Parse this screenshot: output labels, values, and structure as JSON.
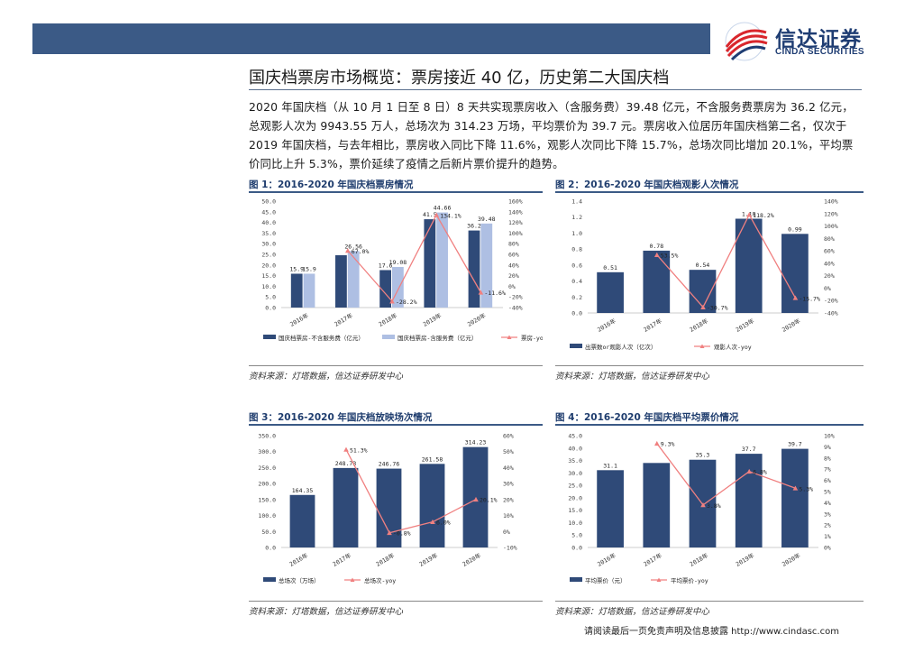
{
  "header": {
    "logo_cn": "信达证券",
    "logo_en": "CINDA SECURITIES"
  },
  "page_title": "国庆档票房市场概览：票房接近 40 亿，历史第二大国庆档",
  "paragraph": "2020 年国庆档（从 10 月 1 日至 8 日）8 天共实现票房收入（含服务费）39.48 亿元，不含服务费票房为 36.2 亿元，总观影人次为 9943.55 万人，总场次为 314.23 万场，平均票价为 39.7 元。票房收入位居历年国庆档第二名，仅次于 2019 年国庆档，与去年相比，票房收入同比下降 11.6%，观影人次同比下降 15.7%，总场次同比增加 20.1%，平均票价同比上升 5.3%，票价延续了疫情之后新片票价提升的趋势。",
  "source_text": "资料来源：灯塔数据，信达证券研发中心",
  "footer": "请阅读最后一页免责声明及信息披露 http://www.cindasc.com",
  "colors": {
    "bar_dark": "#2f4a78",
    "bar_light": "#aebfe3",
    "line_red": "#f08080"
  },
  "chart_data": [
    {
      "id": "fig1",
      "fig_title": "图 1：2016-2020 年国庆档票房情况",
      "type": "bar",
      "categories": [
        "2016年",
        "2017年",
        "2018年",
        "2019年",
        "2020年"
      ],
      "series": [
        {
          "name": "国庆档票房-不含服务费（亿元）",
          "values": [
            15.9,
            24.6,
            17.6,
            41.5,
            36.2
          ],
          "labels": [
            "15.9",
            "",
            "17.6",
            "41.5",
            "36.2"
          ],
          "axis": "left",
          "color": "#2f4a78"
        },
        {
          "name": "国庆档票房-含服务费（亿元）",
          "values": [
            15.9,
            26.56,
            19.08,
            44.66,
            39.48
          ],
          "labels": [
            "15.9",
            "26.56",
            "19.08",
            "44.66",
            "39.48"
          ],
          "axis": "left",
          "color": "#aebfe3"
        },
        {
          "name": "票房-yoy",
          "type": "line",
          "values": [
            null,
            67.0,
            -28.2,
            134.1,
            -11.6
          ],
          "labels": [
            "",
            "67.0%",
            "-28.2%",
            "134.1%",
            "-11.6%"
          ],
          "axis": "right",
          "color": "#f08080"
        }
      ],
      "y_left": {
        "min": 0,
        "max": 50,
        "step": 5,
        "decimals": 1
      },
      "y_right": {
        "min": -40,
        "max": 160,
        "step": 20,
        "suffix": "%"
      }
    },
    {
      "id": "fig2",
      "fig_title": "图 2：2016-2020 年国庆档观影人次情况",
      "type": "bar",
      "categories": [
        "2016年",
        "2017年",
        "2018年",
        "2019年",
        "2020年"
      ],
      "series": [
        {
          "name": "出票数or观影人次（亿次）",
          "values": [
            0.51,
            0.78,
            0.54,
            1.18,
            0.99
          ],
          "labels": [
            "0.51",
            "0.78",
            "0.54",
            "1.18",
            "0.99"
          ],
          "axis": "left",
          "color": "#2f4a78"
        },
        {
          "name": "观影人次-yoy",
          "type": "line",
          "values": [
            null,
            53.5,
            -30.7,
            118.2,
            -15.7
          ],
          "labels": [
            "",
            "53.5%",
            "-30.7%",
            "118.2%",
            "-15.7%"
          ],
          "axis": "right",
          "color": "#f08080"
        }
      ],
      "y_left": {
        "min": 0,
        "max": 1.4,
        "step": 0.2,
        "decimals": 1
      },
      "y_right": {
        "min": -40,
        "max": 140,
        "step": 20,
        "suffix": "%"
      }
    },
    {
      "id": "fig3",
      "fig_title": "图 3：2016-2020 年国庆档放映场次情况",
      "type": "bar",
      "categories": [
        "2016年",
        "2017年",
        "2018年",
        "2019年",
        "2020年"
      ],
      "series": [
        {
          "name": "总场次（万场）",
          "values": [
            164.35,
            248.73,
            246.76,
            261.58,
            314.23
          ],
          "labels": [
            "164.35",
            "248.73",
            "246.76",
            "261.58",
            "314.23"
          ],
          "axis": "left",
          "color": "#2f4a78"
        },
        {
          "name": "总场次-yoy",
          "type": "line",
          "values": [
            null,
            51.3,
            -0.8,
            6.0,
            20.1
          ],
          "labels": [
            "",
            "51.3%",
            "-0.8%",
            "6.0%",
            "20.1%"
          ],
          "axis": "right",
          "color": "#f08080"
        }
      ],
      "y_left": {
        "min": 0,
        "max": 350,
        "step": 50,
        "decimals": 1
      },
      "y_right": {
        "min": -10,
        "max": 60,
        "step": 10,
        "suffix": "%"
      }
    },
    {
      "id": "fig4",
      "fig_title": "图 4：2016-2020 年国庆档平均票价情况",
      "type": "bar",
      "categories": [
        "2016年",
        "2017年",
        "2018年",
        "2019年",
        "2020年"
      ],
      "series": [
        {
          "name": "平均票价（元）",
          "values": [
            31.1,
            34.0,
            35.3,
            37.7,
            39.7
          ],
          "labels": [
            "31.1",
            "",
            "35.3",
            "37.7",
            "39.7"
          ],
          "axis": "left",
          "color": "#2f4a78"
        },
        {
          "name": "平均票价-yoy",
          "type": "line",
          "values": [
            null,
            9.3,
            3.8,
            6.8,
            5.3
          ],
          "labels": [
            "",
            "9.3%",
            "3.8%",
            "6.8%",
            "5.3%"
          ],
          "axis": "right",
          "color": "#f08080"
        }
      ],
      "y_left": {
        "min": 0,
        "max": 45,
        "step": 5,
        "decimals": 1
      },
      "y_right": {
        "min": 0,
        "max": 10,
        "step": 1,
        "suffix": "%"
      }
    }
  ]
}
